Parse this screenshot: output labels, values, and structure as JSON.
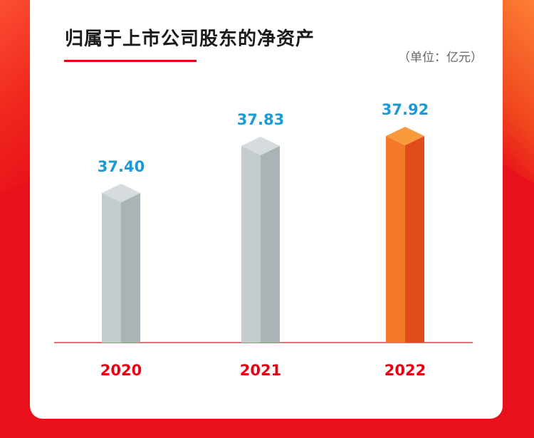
{
  "colors": {
    "background": "#e8101a",
    "value_label": "#1b9ad6",
    "category_label": "#e60012",
    "bar_grey_front": "#c3cbce",
    "bar_grey_side": "#aab3b6",
    "bar_grey_top": "#d6dcde",
    "bar_orange_front": "#f47a2a",
    "bar_orange_side": "#e24b1c",
    "bar_orange_top": "#f89a3c",
    "baseline": "#d7434b"
  },
  "chart_data": {
    "type": "bar",
    "title": "归属于上市公司股东的净资产",
    "unit": "（单位：亿元）",
    "categories": [
      "2020",
      "2021",
      "2022"
    ],
    "values": [
      37.4,
      37.83,
      37.92
    ],
    "value_labels": [
      "37.40",
      "37.83",
      "37.92"
    ],
    "highlight": "2022",
    "grid": false,
    "legend": "none"
  }
}
